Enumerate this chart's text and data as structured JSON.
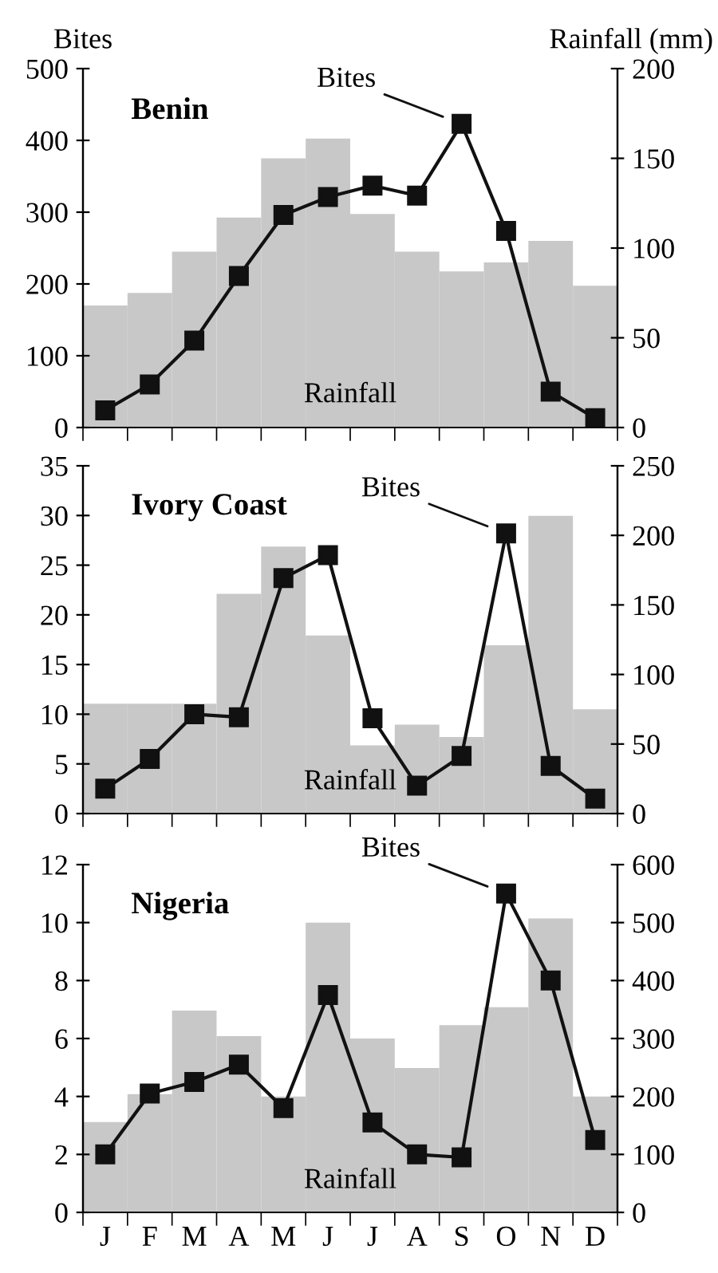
{
  "chart_data": [
    {
      "type": "line",
      "title": "Benin",
      "ylabel": "Bites",
      "y2label": "Rainfall (mm)",
      "categories": [
        null,
        null,
        null,
        null,
        null,
        null,
        null,
        null,
        null,
        null,
        null,
        null
      ],
      "marker": "square",
      "grid": false,
      "legend": false,
      "ylim": [
        0,
        500
      ],
      "yticks": [
        0,
        100,
        200,
        300,
        400,
        500
      ],
      "y2lim": [
        0,
        200
      ],
      "y2ticks": [
        0,
        50,
        100,
        150,
        200
      ],
      "series": [
        {
          "name": "Rainfall",
          "type": "bar",
          "axis": "y2",
          "color": "#c8c8c8",
          "values": [
            68,
            75,
            98,
            117,
            150,
            161,
            119,
            98,
            87,
            92,
            104,
            79
          ]
        },
        {
          "name": "Bites",
          "color": "#111111",
          "values": [
            24,
            60,
            121,
            211,
            296,
            321,
            337,
            323,
            423,
            274,
            50,
            13
          ]
        }
      ]
    },
    {
      "type": "line",
      "title": "Ivory Coast",
      "categories": [
        null,
        null,
        null,
        null,
        null,
        null,
        null,
        null,
        null,
        null,
        null,
        null
      ],
      "marker": "square",
      "grid": false,
      "legend": false,
      "ylim": [
        0,
        35
      ],
      "yticks": [
        0,
        5,
        10,
        15,
        20,
        25,
        30,
        35
      ],
      "y2lim": [
        0,
        250
      ],
      "y2ticks": [
        0,
        50,
        100,
        150,
        200,
        250
      ],
      "series": [
        {
          "name": "Rainfall",
          "type": "bar",
          "axis": "y2",
          "color": "#c8c8c8",
          "values": [
            79,
            79,
            79,
            158,
            192,
            128,
            49,
            64,
            55,
            121,
            214,
            75
          ]
        },
        {
          "name": "Bites",
          "color": "#111111",
          "values": [
            2.5,
            5.5,
            10,
            9.7,
            23.7,
            26,
            9.6,
            2.8,
            5.8,
            28.2,
            4.8,
            1.5
          ]
        }
      ]
    },
    {
      "type": "line",
      "title": "Nigeria",
      "categories": [
        "J",
        "F",
        "M",
        "A",
        "M",
        "J",
        "J",
        "A",
        "S",
        "O",
        "N",
        "D"
      ],
      "marker": "square",
      "grid": false,
      "legend": false,
      "ylim": [
        0,
        12
      ],
      "yticks": [
        0,
        2,
        4,
        6,
        8,
        10,
        12
      ],
      "y2lim": [
        0,
        600
      ],
      "y2ticks": [
        0,
        100,
        200,
        300,
        400,
        500,
        600
      ],
      "series": [
        {
          "name": "Rainfall",
          "type": "bar",
          "axis": "y2",
          "color": "#c8c8c8",
          "values": [
            156,
            204,
            348,
            304,
            200,
            500,
            300,
            249,
            323,
            354,
            507,
            200
          ]
        },
        {
          "name": "Bites",
          "color": "#111111",
          "values": [
            2.0,
            4.1,
            4.5,
            5.1,
            3.6,
            7.5,
            3.1,
            2.0,
            1.9,
            11,
            8,
            2.5
          ]
        }
      ]
    }
  ]
}
